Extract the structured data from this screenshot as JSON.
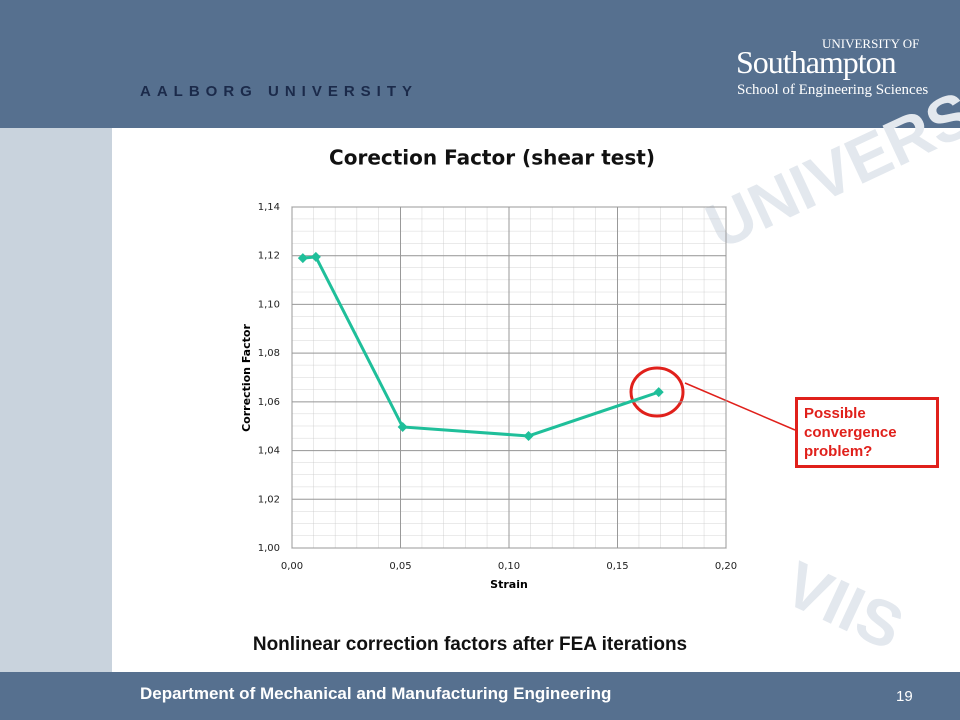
{
  "slide": {
    "left_logo": "AALBORG UNIVERSITY",
    "right_logo_small": "UNIVERSITY OF",
    "right_logo": "Southampton",
    "right_logo_sub": "School of Engineering Sciences",
    "caption": "Nonlinear correction factors after FEA iterations",
    "footer": "Department of Mechanical and Manufacturing Engineering",
    "page_number": "19",
    "annotation": "Possible convergence problem?"
  },
  "chart_data": {
    "type": "line",
    "title": "Corection Factor (shear test)",
    "x_label": "Strain",
    "y_label": "Correction Factor",
    "x": [
      0.005,
      0.011,
      0.051,
      0.109,
      0.169
    ],
    "series": [
      {
        "color": "#1fbf9a",
        "values": [
          1.119,
          1.1195,
          1.0497,
          1.046,
          1.064
        ]
      }
    ],
    "xlim": [
      0,
      0.2
    ],
    "xticks": [
      {
        "value": 0,
        "label": "0,00"
      },
      {
        "value": 0.05,
        "label": "0,05"
      },
      {
        "value": 0.1,
        "label": "0,10"
      },
      {
        "value": 0.15,
        "label": "0,15"
      },
      {
        "value": 0.2,
        "label": "0,20"
      }
    ],
    "ylim": [
      1,
      1.14
    ],
    "yticks": [
      {
        "value": 1,
        "label": "1,00"
      },
      {
        "value": 1.02,
        "label": "1,02"
      },
      {
        "value": 1.04,
        "label": "1,04"
      },
      {
        "value": 1.06,
        "label": "1,06"
      },
      {
        "value": 1.08,
        "label": "1,08"
      },
      {
        "value": 1.1,
        "label": "1,10"
      },
      {
        "value": 1.12,
        "label": "1,12"
      },
      {
        "value": 1.14,
        "label": "1,14"
      }
    ],
    "grid": true
  }
}
